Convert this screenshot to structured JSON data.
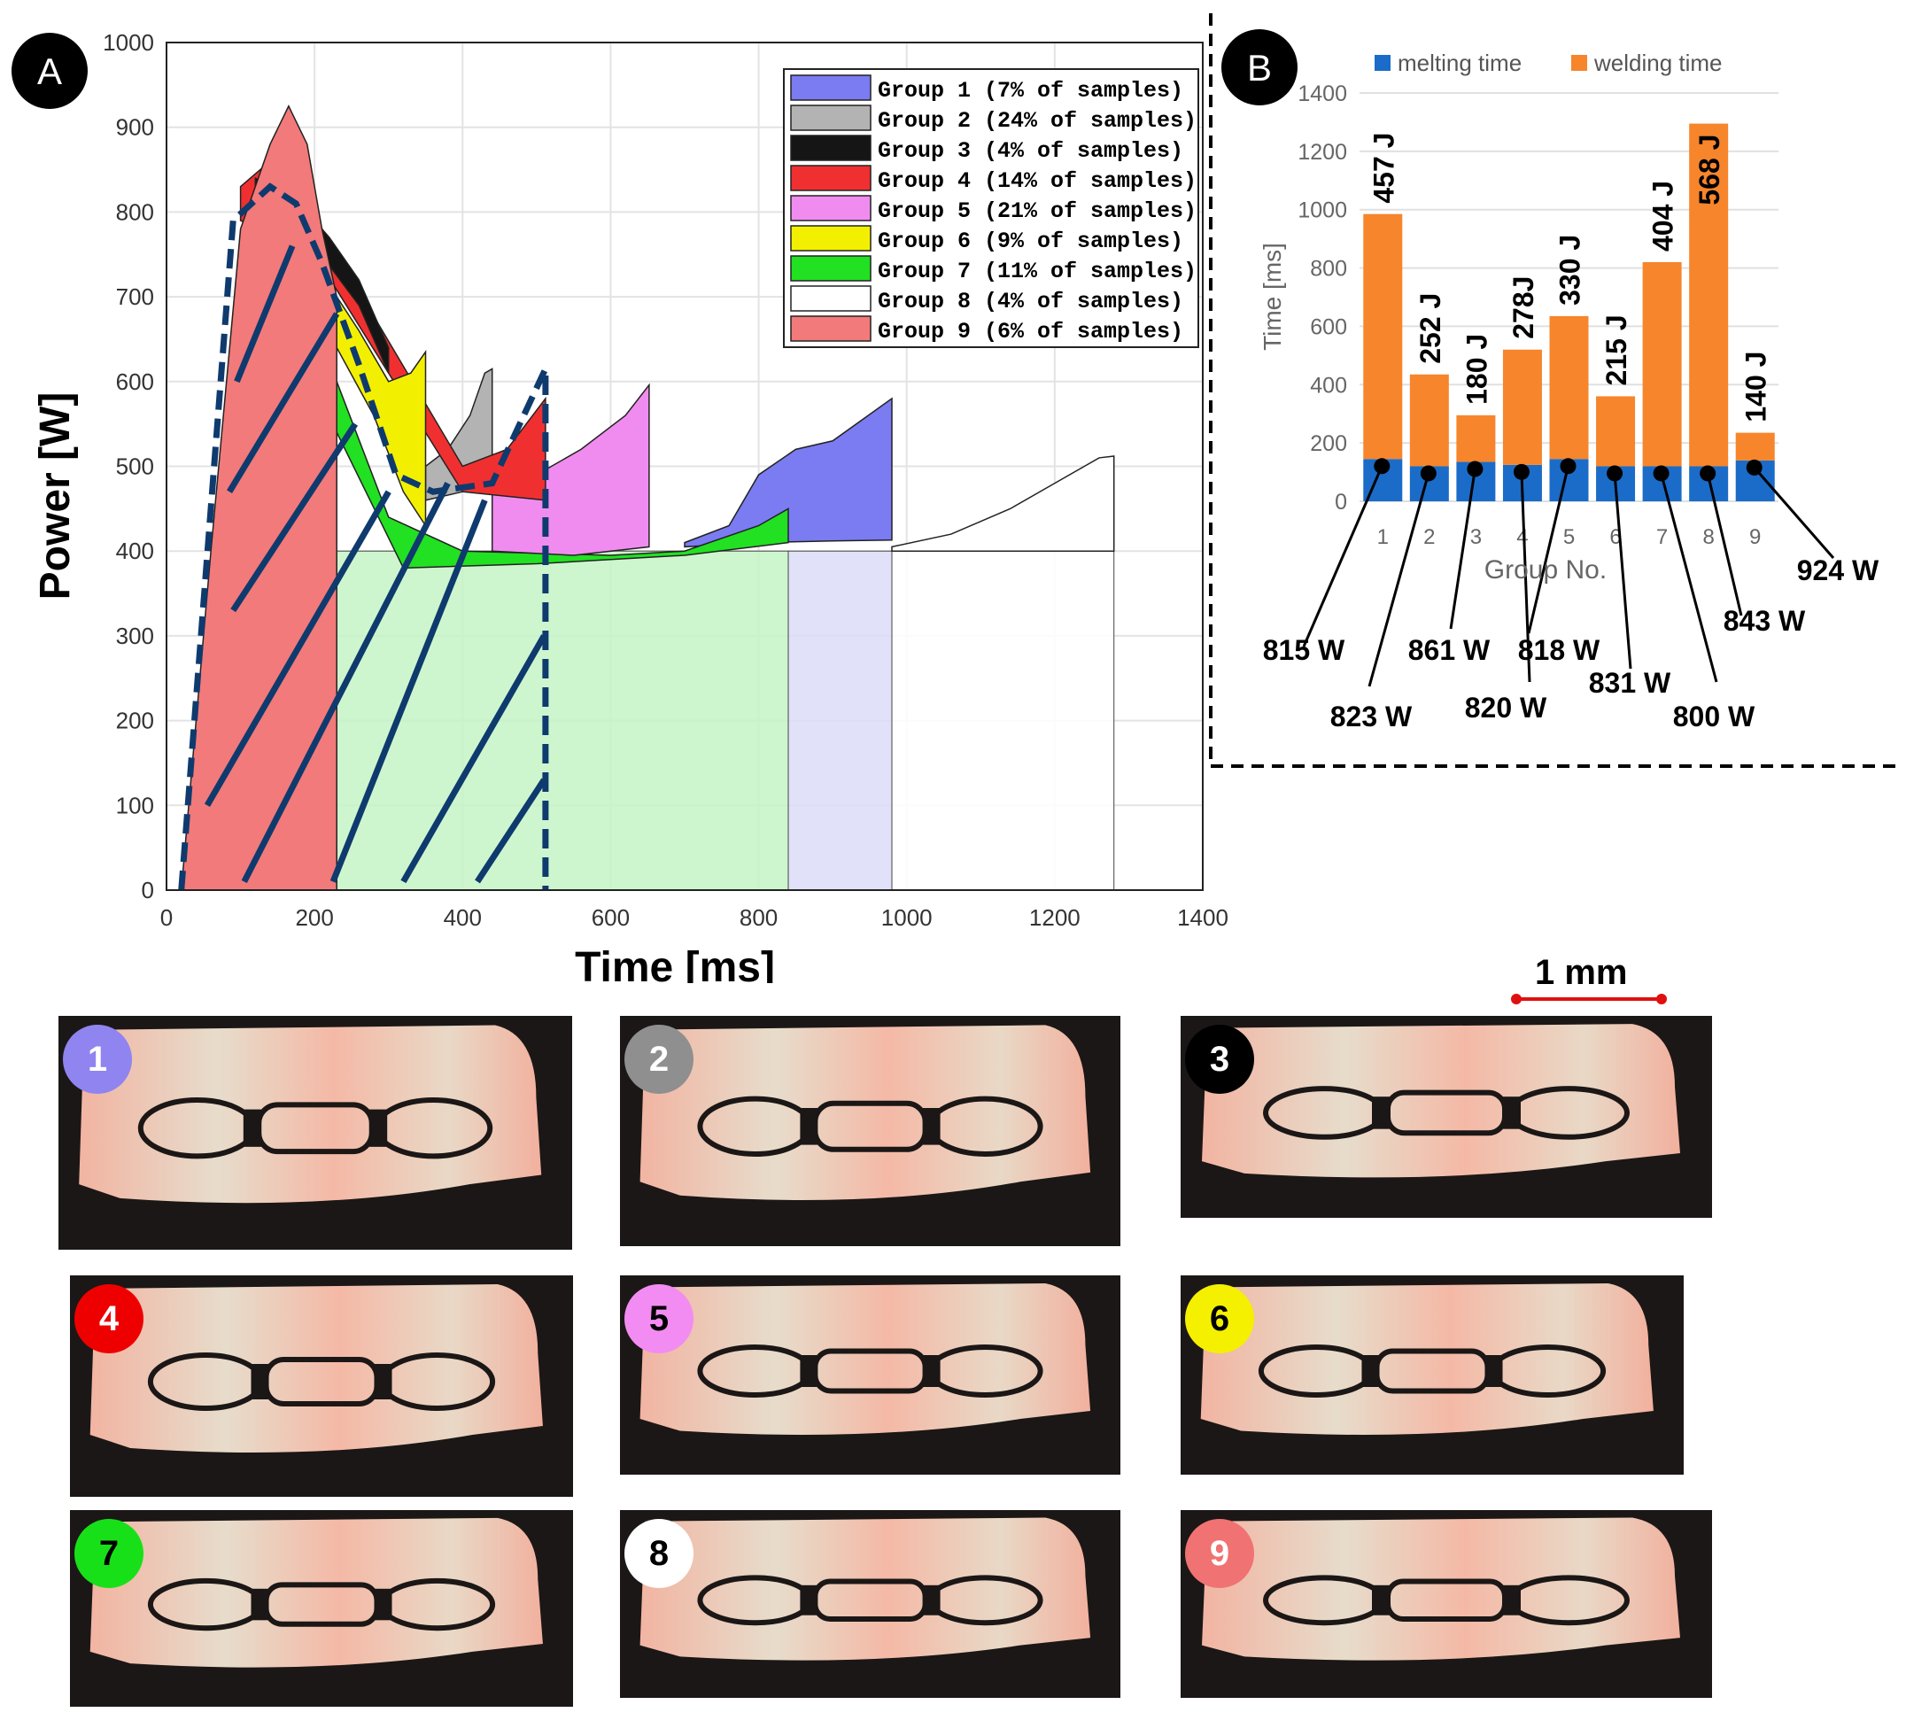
{
  "chart_data": [
    {
      "panel_label": "A",
      "type": "area",
      "xlabel": "Time [ms]",
      "ylabel": "Power [W]",
      "xlim": [
        0,
        1400
      ],
      "ylim": [
        0,
        1000
      ],
      "xticks": [
        0,
        200,
        400,
        600,
        800,
        1000,
        1200,
        1400
      ],
      "yticks": [
        0,
        100,
        200,
        300,
        400,
        500,
        600,
        700,
        800,
        900,
        1000
      ],
      "grid": true,
      "legend_position": "top-right",
      "series": [
        {
          "name": "Group 1 (7% of samples)",
          "color": "#7b7bf2",
          "end_ms": 980,
          "upper": [
            [
              700,
              410
            ],
            [
              760,
              430
            ],
            [
              800,
              490
            ],
            [
              850,
              520
            ],
            [
              900,
              530
            ],
            [
              940,
              555
            ],
            [
              980,
              580
            ]
          ],
          "lower": [
            [
              700,
              405
            ],
            [
              800,
              410
            ],
            [
              900,
              412
            ],
            [
              980,
              413
            ]
          ]
        },
        {
          "name": "Group 2 (24% of samples)",
          "color": "#b3b3b3",
          "end_ms": 440,
          "upper": [
            [
              350,
              500
            ],
            [
              380,
              520
            ],
            [
              410,
              560
            ],
            [
              430,
              610
            ],
            [
              440,
              615
            ]
          ],
          "lower": [
            [
              350,
              460
            ],
            [
              400,
              470
            ],
            [
              440,
              480
            ]
          ]
        },
        {
          "name": "Group 3 (4% of samples)",
          "color": "#151515",
          "end_ms": 300,
          "upper": [
            [
              120,
              840
            ],
            [
              170,
              820
            ],
            [
              220,
              770
            ],
            [
              260,
              720
            ],
            [
              300,
              640
            ]
          ],
          "lower": [
            [
              120,
              800
            ],
            [
              200,
              760
            ],
            [
              260,
              690
            ],
            [
              300,
              610
            ]
          ]
        },
        {
          "name": "Group 4 (14% of samples)",
          "color": "#f03030",
          "end_ms": 512,
          "upper": [
            [
              100,
              830
            ],
            [
              140,
              860
            ],
            [
              190,
              810
            ],
            [
              400,
              500
            ],
            [
              460,
              520
            ],
            [
              512,
              580
            ]
          ],
          "lower": [
            [
              100,
              790
            ],
            [
              200,
              750
            ],
            [
              400,
              470
            ],
            [
              512,
              460
            ]
          ]
        },
        {
          "name": "Group 5 (21% of samples)",
          "color": "#f08cf0",
          "end_ms": 652,
          "upper": [
            [
              440,
              470
            ],
            [
              500,
              490
            ],
            [
              560,
              520
            ],
            [
              620,
              560
            ],
            [
              652,
              596
            ]
          ],
          "lower": [
            [
              440,
              400
            ],
            [
              550,
              395
            ],
            [
              652,
              405
            ]
          ]
        },
        {
          "name": "Group 6 (9% of samples)",
          "color": "#f2f000",
          "end_ms": 350,
          "upper": [
            [
              230,
              700
            ],
            [
              260,
              660
            ],
            [
              300,
              600
            ],
            [
              330,
              610
            ],
            [
              350,
              635
            ]
          ],
          "lower": [
            [
              230,
              640
            ],
            [
              280,
              560
            ],
            [
              320,
              470
            ],
            [
              350,
              430
            ]
          ]
        },
        {
          "name": "Group 7 (11% of samples)",
          "color": "#22e022",
          "end_ms": 840,
          "upper": [
            [
              230,
              600
            ],
            [
              300,
              440
            ],
            [
              400,
              400
            ],
            [
              600,
              395
            ],
            [
              700,
              400
            ],
            [
              800,
              430
            ],
            [
              840,
              450
            ]
          ],
          "lower": [
            [
              230,
              540
            ],
            [
              320,
              380
            ],
            [
              500,
              385
            ],
            [
              700,
              395
            ],
            [
              840,
              410
            ]
          ]
        },
        {
          "name": "Group 8 (4% of samples)",
          "color": "#ffffff",
          "end_ms": 1280,
          "upper": [
            [
              980,
              405
            ],
            [
              1060,
              420
            ],
            [
              1140,
              450
            ],
            [
              1200,
              480
            ],
            [
              1260,
              510
            ],
            [
              1280,
              512
            ]
          ],
          "lower": [
            [
              980,
              400
            ],
            [
              1280,
              400
            ]
          ]
        },
        {
          "name": "Group 9 (6% of samples)",
          "color": "#f27a7a",
          "end_ms": 230,
          "upper": [
            [
              20,
              0
            ],
            [
              60,
              400
            ],
            [
              100,
              780
            ],
            [
              140,
              880
            ],
            [
              165,
              925
            ],
            [
              190,
              880
            ],
            [
              210,
              780
            ],
            [
              230,
              700
            ]
          ],
          "lower": [
            [
              20,
              0
            ],
            [
              230,
              0
            ]
          ]
        }
      ],
      "dashed_envelope": [
        [
          20,
          0
        ],
        [
          90,
          790
        ],
        [
          140,
          830
        ],
        [
          175,
          810
        ],
        [
          210,
          740
        ],
        [
          260,
          620
        ],
        [
          310,
          490
        ],
        [
          360,
          470
        ],
        [
          440,
          480
        ],
        [
          512,
          615
        ],
        [
          512,
          0
        ]
      ]
    },
    {
      "panel_label": "B",
      "type": "bar",
      "stacked": true,
      "xlabel": "Group No.",
      "ylabel": "Time [ms]",
      "ylim": [
        0,
        1400
      ],
      "yticks": [
        0,
        200,
        400,
        600,
        800,
        1000,
        1200,
        1400
      ],
      "categories": [
        "1",
        "2",
        "3",
        "4",
        "5",
        "6",
        "7",
        "8",
        "9"
      ],
      "series": [
        {
          "name": "melting time",
          "color": "#1a6cc8",
          "values": [
            145,
            120,
            135,
            125,
            145,
            120,
            120,
            120,
            140
          ]
        },
        {
          "name": "welding time",
          "color": "#f7852b",
          "values": [
            840,
            315,
            160,
            395,
            490,
            240,
            700,
            1175,
            95
          ]
        }
      ],
      "totals": [
        985,
        435,
        295,
        520,
        635,
        360,
        820,
        1295,
        235
      ],
      "energy_labels": [
        "457 J",
        "252 J",
        "180 J",
        "278J",
        "330 J",
        "215 J",
        "404 J",
        "568 J",
        "140 J"
      ],
      "power_labels": [
        "815 W",
        "823 W",
        "861 W",
        "820 W",
        "818 W",
        "831 W",
        "800 W",
        "843 W",
        "924 W"
      ]
    }
  ],
  "micrographs": {
    "scale_label": "1 mm",
    "panels": [
      {
        "number": "1",
        "badge_color": "#8f84f0",
        "text_color": "#ffffff"
      },
      {
        "number": "2",
        "badge_color": "#8f8f8f",
        "text_color": "#ffffff"
      },
      {
        "number": "3",
        "badge_color": "#000000",
        "text_color": "#ffffff"
      },
      {
        "number": "4",
        "badge_color": "#ee0000",
        "text_color": "#ffffff"
      },
      {
        "number": "5",
        "badge_color": "#f28cf2",
        "text_color": "#000000"
      },
      {
        "number": "6",
        "badge_color": "#f4f000",
        "text_color": "#000000"
      },
      {
        "number": "7",
        "badge_color": "#18e018",
        "text_color": "#000000"
      },
      {
        "number": "8",
        "badge_color": "#ffffff",
        "text_color": "#000000"
      },
      {
        "number": "9",
        "badge_color": "#f07272",
        "text_color": "#ffffff"
      }
    ]
  }
}
